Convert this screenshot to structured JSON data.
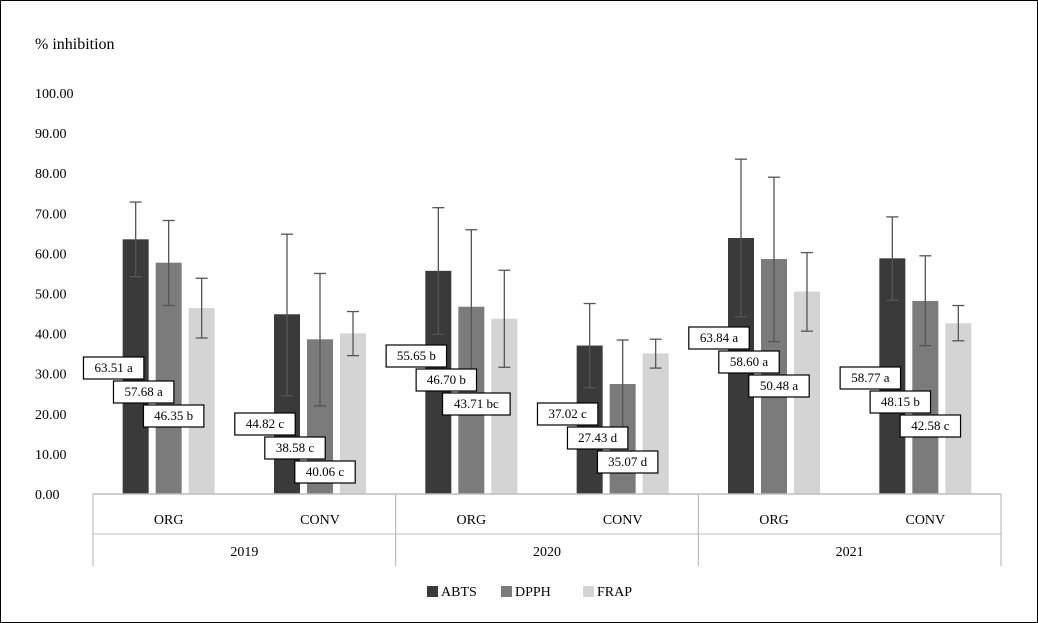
{
  "chart_data": {
    "type": "bar",
    "ylabel": "% inhibition",
    "ylim": [
      0,
      100
    ],
    "yticks": [
      "0.00",
      "10.00",
      "20.00",
      "30.00",
      "40.00",
      "50.00",
      "60.00",
      "70.00",
      "80.00",
      "90.00",
      "100.00"
    ],
    "groups": [
      "2019",
      "2020",
      "2021"
    ],
    "subcategories": [
      "ORG",
      "CONV",
      "ORG",
      "CONV",
      "ORG",
      "CONV"
    ],
    "grid": false,
    "legend_position": "bottom",
    "colors": {
      "ABTS": "#3a3a3a",
      "DPPH": "#7b7b7b",
      "FRAP": "#d4d4d4"
    },
    "series": [
      {
        "name": "ABTS",
        "values": [
          63.51,
          44.82,
          55.65,
          37.02,
          63.84,
          58.77
        ],
        "err_low": [
          54.2,
          24.5,
          39.8,
          26.5,
          44.2,
          48.3
        ],
        "err_high": [
          72.8,
          64.8,
          71.4,
          47.5,
          83.5,
          69.1
        ],
        "labels": [
          "63.51 a",
          "44.82 c",
          "55.65 b",
          "37.02 c",
          "63.84 a",
          "58.77 a"
        ]
      },
      {
        "name": "DPPH",
        "values": [
          57.68,
          38.58,
          46.7,
          27.43,
          58.6,
          48.15
        ],
        "err_low": [
          47.0,
          22.0,
          27.5,
          16.5,
          38.0,
          37.0
        ],
        "err_high": [
          68.2,
          55.0,
          65.9,
          38.4,
          79.0,
          59.4
        ],
        "labels": [
          "57.68 a",
          "38.58 c",
          "46.70 b",
          "27.43 d",
          "58.60 a",
          "48.15 b"
        ]
      },
      {
        "name": "FRAP",
        "values": [
          46.35,
          40.06,
          43.71,
          35.07,
          50.48,
          42.58
        ],
        "err_low": [
          38.9,
          34.5,
          31.6,
          31.4,
          40.6,
          38.2
        ],
        "err_high": [
          53.8,
          45.5,
          55.8,
          38.6,
          60.2,
          47.0
        ],
        "labels": [
          "46.35 b",
          "40.06 c",
          "43.71 bc",
          "35.07 d",
          "50.48 a",
          "42.58 c"
        ]
      }
    ]
  }
}
